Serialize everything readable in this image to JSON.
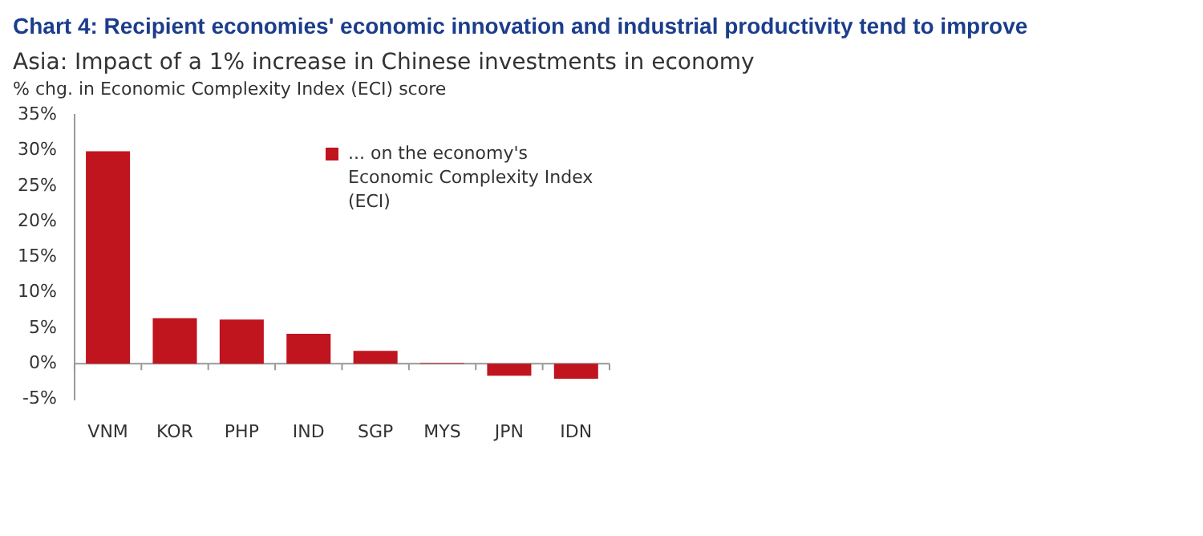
{
  "chart_data": {
    "type": "bar",
    "title": "Chart 4: Recipient economies' economic innovation and industrial productivity tend to improve",
    "subtitle": "Asia: Impact of a 1% increase in Chinese investments in economy",
    "ylabel": "% chg. in Economic Complexity Index (ECI) score",
    "categories": [
      "VNM",
      "KOR",
      "PHP",
      "IND",
      "SGP",
      "MYS",
      "JPN",
      "IDN"
    ],
    "series": [
      {
        "name": "... on the economy's Economic Complexity Index (ECI)",
        "color": "#c0141f",
        "values": [
          29.9,
          6.4,
          6.2,
          4.2,
          1.8,
          0.1,
          -1.7,
          -2.1
        ]
      }
    ],
    "ylim": [
      -5,
      35
    ],
    "yticks": [
      {
        "value": -5,
        "label": "-5%"
      },
      {
        "value": 0,
        "label": "0%"
      },
      {
        "value": 5,
        "label": "5%"
      },
      {
        "value": 10,
        "label": "10%"
      },
      {
        "value": 15,
        "label": "15%"
      },
      {
        "value": 20,
        "label": "20%"
      },
      {
        "value": 25,
        "label": "25%"
      },
      {
        "value": 30,
        "label": "30%"
      },
      {
        "value": 35,
        "label": "35%"
      }
    ],
    "ref_lines": [
      {
        "axis": "y",
        "value": 0,
        "color": "#999999"
      }
    ],
    "grid": false,
    "legend": "top right"
  }
}
